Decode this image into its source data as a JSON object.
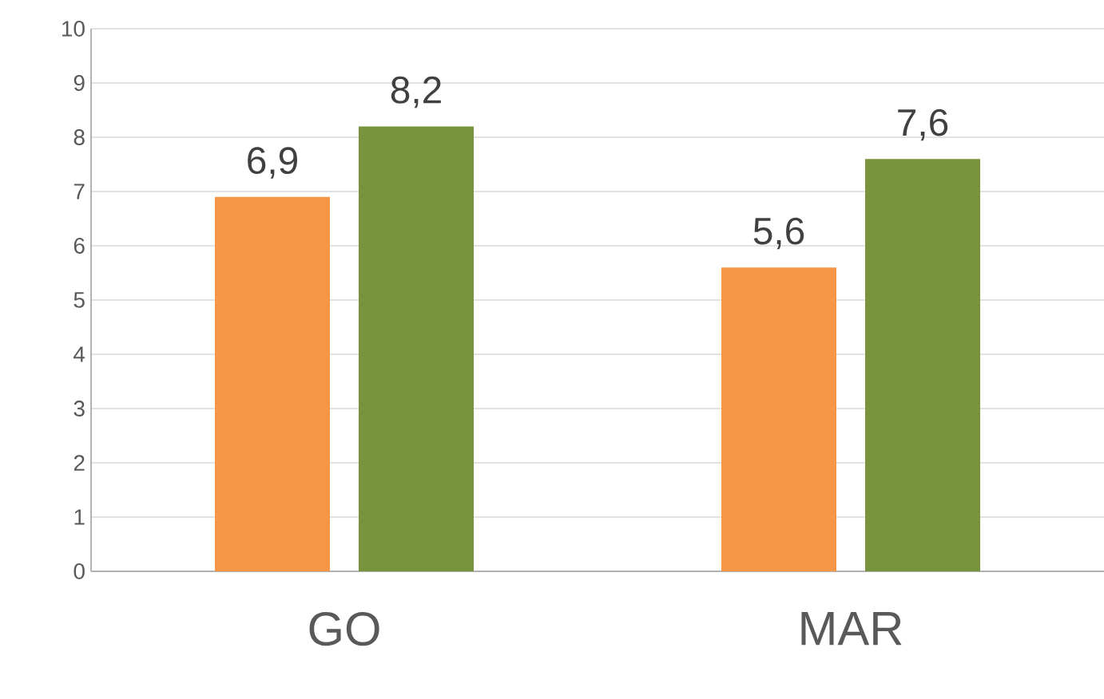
{
  "chart_data": {
    "type": "bar",
    "categories": [
      "GO",
      "MAR"
    ],
    "series": [
      {
        "color": "#f79646",
        "values": [
          6.9,
          5.6
        ],
        "value_labels": [
          "6,9",
          "5,6"
        ]
      },
      {
        "color": "#77933c",
        "values": [
          8.2,
          7.6
        ],
        "value_labels": [
          "8,2",
          "7,6"
        ]
      }
    ],
    "ylim": [
      0,
      10
    ],
    "yticks": [
      0,
      1,
      2,
      3,
      4,
      5,
      6,
      7,
      8,
      9,
      10
    ],
    "grid": "y"
  }
}
